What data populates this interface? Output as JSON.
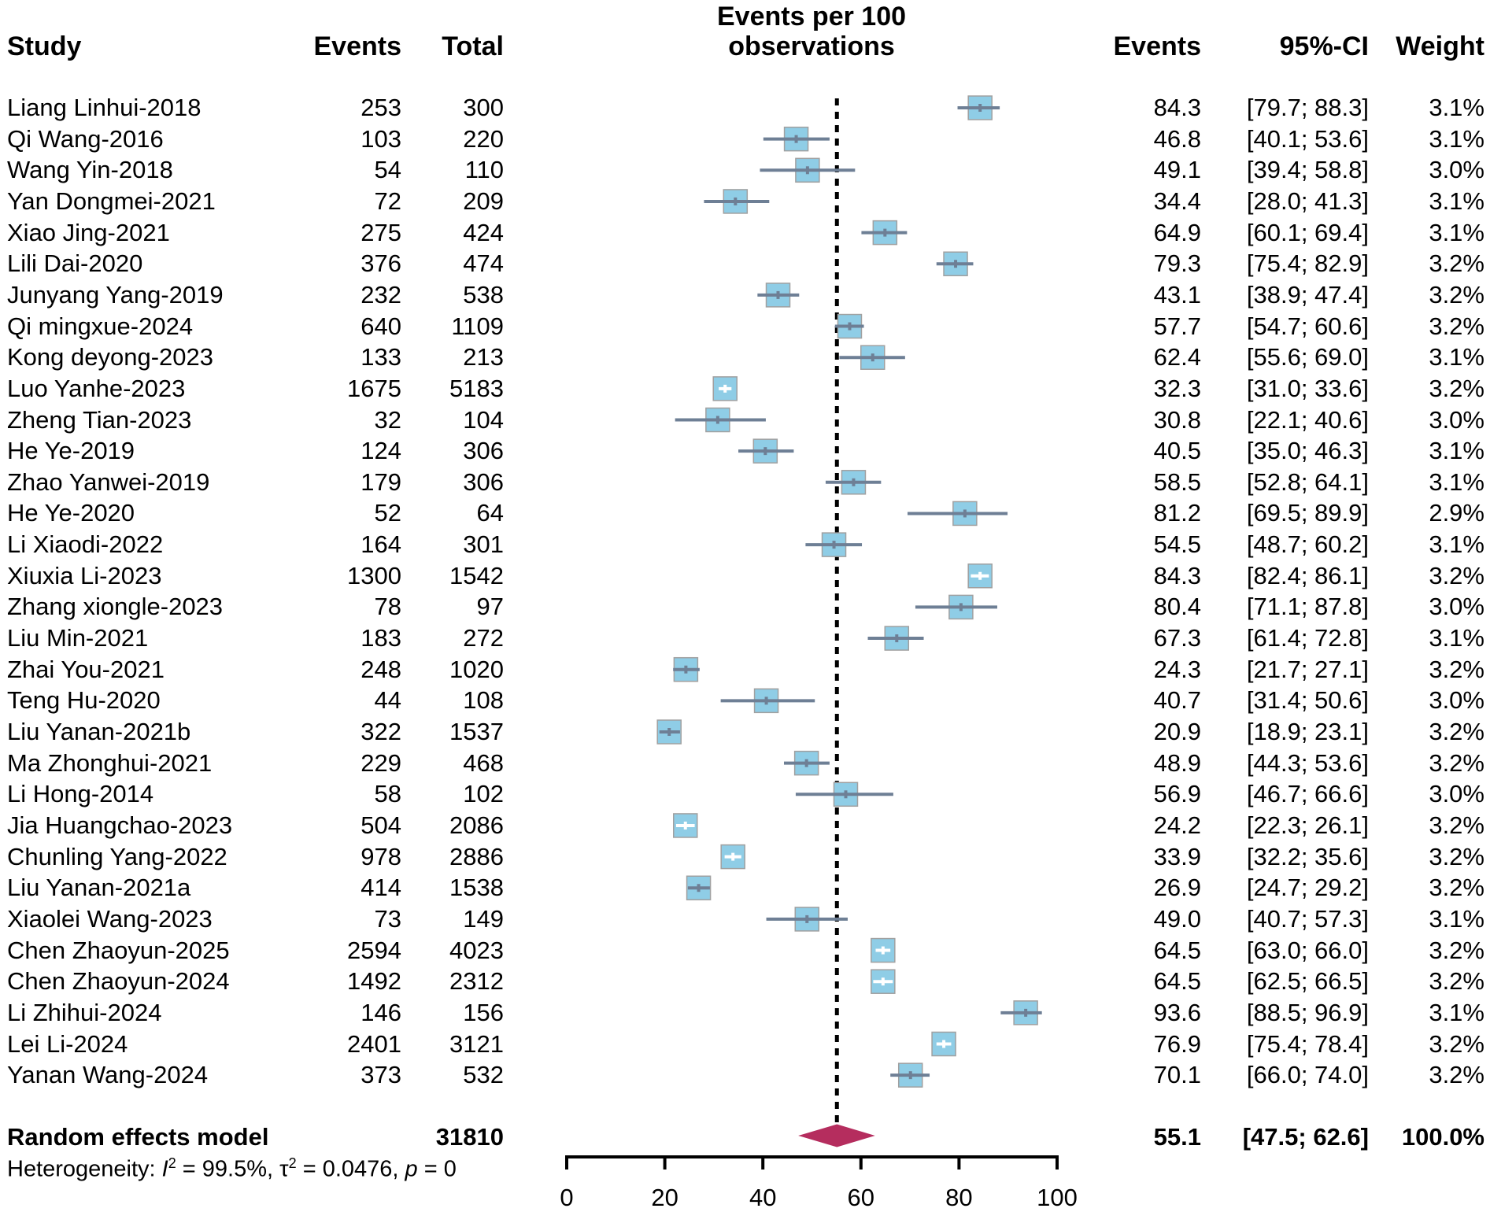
{
  "headers": {
    "study": "Study",
    "events": "Events",
    "total": "Total",
    "plot_title_line1": "Events per 100",
    "plot_title_line2": "observations",
    "est": "Events",
    "ci": "95%-CI",
    "weight": "Weight"
  },
  "summary": {
    "label": "Random effects model",
    "total": "31810",
    "est": "55.1",
    "ci": "[47.5; 62.6]",
    "weight": "100.0%",
    "heterogeneity": {
      "prefix": "Heterogeneity: ",
      "i2_symbol": "I",
      "i2_value": " = 99.5%, ",
      "tau_symbol": "τ",
      "tau_value": " = 0.0476, ",
      "p_symbol": "p",
      "p_value": " = 0",
      "exponent": "2"
    }
  },
  "colors": {
    "box": "#8fcde6",
    "box_border": "#a0a0a0",
    "ci_line": "#6e7f95",
    "diamond": "#b52d5e",
    "dashed": "#000000"
  },
  "chart_data": {
    "type": "forest",
    "xlabel": "",
    "xlim": [
      0,
      100
    ],
    "xticks": [
      0,
      20,
      40,
      60,
      80,
      100
    ],
    "reference_line": 55.1,
    "summary": {
      "est": 55.1,
      "lo": 47.5,
      "hi": 62.6
    },
    "studies": [
      {
        "study": "Liang Linhui-2018",
        "events": "253",
        "total": "300",
        "est": "84.3",
        "ci": "[79.7; 88.3]",
        "weight": "3.1%",
        "lo": 79.7,
        "hi": 88.3
      },
      {
        "study": "Qi Wang-2016",
        "events": "103",
        "total": "220",
        "est": "46.8",
        "ci": "[40.1; 53.6]",
        "weight": "3.1%",
        "lo": 40.1,
        "hi": 53.6
      },
      {
        "study": "Wang Yin-2018",
        "events": "54",
        "total": "110",
        "est": "49.1",
        "ci": "[39.4; 58.8]",
        "weight": "3.0%",
        "lo": 39.4,
        "hi": 58.8
      },
      {
        "study": "Yan Dongmei-2021",
        "events": "72",
        "total": "209",
        "est": "34.4",
        "ci": "[28.0; 41.3]",
        "weight": "3.1%",
        "lo": 28.0,
        "hi": 41.3
      },
      {
        "study": "Xiao Jing-2021",
        "events": "275",
        "total": "424",
        "est": "64.9",
        "ci": "[60.1; 69.4]",
        "weight": "3.1%",
        "lo": 60.1,
        "hi": 69.4
      },
      {
        "study": "Lili Dai-2020",
        "events": "376",
        "total": "474",
        "est": "79.3",
        "ci": "[75.4; 82.9]",
        "weight": "3.2%",
        "lo": 75.4,
        "hi": 82.9
      },
      {
        "study": "Junyang Yang-2019",
        "events": "232",
        "total": "538",
        "est": "43.1",
        "ci": "[38.9; 47.4]",
        "weight": "3.2%",
        "lo": 38.9,
        "hi": 47.4
      },
      {
        "study": "Qi mingxue-2024",
        "events": "640",
        "total": "1109",
        "est": "57.7",
        "ci": "[54.7; 60.6]",
        "weight": "3.2%",
        "lo": 54.7,
        "hi": 60.6
      },
      {
        "study": "Kong deyong-2023",
        "events": "133",
        "total": "213",
        "est": "62.4",
        "ci": "[55.6; 69.0]",
        "weight": "3.1%",
        "lo": 55.6,
        "hi": 69.0
      },
      {
        "study": "Luo Yanhe-2023",
        "events": "1675",
        "total": "5183",
        "est": "32.3",
        "ci": "[31.0; 33.6]",
        "weight": "3.2%",
        "lo": 31.0,
        "hi": 33.6
      },
      {
        "study": "Zheng Tian-2023",
        "events": "32",
        "total": "104",
        "est": "30.8",
        "ci": "[22.1; 40.6]",
        "weight": "3.0%",
        "lo": 22.1,
        "hi": 40.6
      },
      {
        "study": "He Ye-2019",
        "events": "124",
        "total": "306",
        "est": "40.5",
        "ci": "[35.0; 46.3]",
        "weight": "3.1%",
        "lo": 35.0,
        "hi": 46.3
      },
      {
        "study": "Zhao Yanwei-2019",
        "events": "179",
        "total": "306",
        "est": "58.5",
        "ci": "[52.8; 64.1]",
        "weight": "3.1%",
        "lo": 52.8,
        "hi": 64.1
      },
      {
        "study": "He Ye-2020",
        "events": "52",
        "total": "64",
        "est": "81.2",
        "ci": "[69.5; 89.9]",
        "weight": "2.9%",
        "lo": 69.5,
        "hi": 89.9
      },
      {
        "study": "Li Xiaodi-2022",
        "events": "164",
        "total": "301",
        "est": "54.5",
        "ci": "[48.7; 60.2]",
        "weight": "3.1%",
        "lo": 48.7,
        "hi": 60.2
      },
      {
        "study": "Xiuxia Li-2023",
        "events": "1300",
        "total": "1542",
        "est": "84.3",
        "ci": "[82.4; 86.1]",
        "weight": "3.2%",
        "lo": 82.4,
        "hi": 86.1
      },
      {
        "study": "Zhang xiongle-2023",
        "events": "78",
        "total": "97",
        "est": "80.4",
        "ci": "[71.1; 87.8]",
        "weight": "3.0%",
        "lo": 71.1,
        "hi": 87.8
      },
      {
        "study": "Liu Min-2021",
        "events": "183",
        "total": "272",
        "est": "67.3",
        "ci": "[61.4; 72.8]",
        "weight": "3.1%",
        "lo": 61.4,
        "hi": 72.8
      },
      {
        "study": "Zhai You-2021",
        "events": "248",
        "total": "1020",
        "est": "24.3",
        "ci": "[21.7; 27.1]",
        "weight": "3.2%",
        "lo": 21.7,
        "hi": 27.1
      },
      {
        "study": "Teng Hu-2020",
        "events": "44",
        "total": "108",
        "est": "40.7",
        "ci": "[31.4; 50.6]",
        "weight": "3.0%",
        "lo": 31.4,
        "hi": 50.6
      },
      {
        "study": "Liu Yanan-2021b",
        "events": "322",
        "total": "1537",
        "est": "20.9",
        "ci": "[18.9; 23.1]",
        "weight": "3.2%",
        "lo": 18.9,
        "hi": 23.1
      },
      {
        "study": "Ma Zhonghui-2021",
        "events": "229",
        "total": "468",
        "est": "48.9",
        "ci": "[44.3; 53.6]",
        "weight": "3.2%",
        "lo": 44.3,
        "hi": 53.6
      },
      {
        "study": "Li Hong-2014",
        "events": "58",
        "total": "102",
        "est": "56.9",
        "ci": "[46.7; 66.6]",
        "weight": "3.0%",
        "lo": 46.7,
        "hi": 66.6
      },
      {
        "study": "Jia Huangchao-2023",
        "events": "504",
        "total": "2086",
        "est": "24.2",
        "ci": "[22.3; 26.1]",
        "weight": "3.2%",
        "lo": 22.3,
        "hi": 26.1
      },
      {
        "study": "Chunling Yang-2022",
        "events": "978",
        "total": "2886",
        "est": "33.9",
        "ci": "[32.2; 35.6]",
        "weight": "3.2%",
        "lo": 32.2,
        "hi": 35.6
      },
      {
        "study": "Liu Yanan-2021a",
        "events": "414",
        "total": "1538",
        "est": "26.9",
        "ci": "[24.7; 29.2]",
        "weight": "3.2%",
        "lo": 24.7,
        "hi": 29.2
      },
      {
        "study": "Xiaolei Wang-2023",
        "events": "73",
        "total": "149",
        "est": "49.0",
        "ci": "[40.7; 57.3]",
        "weight": "3.1%",
        "lo": 40.7,
        "hi": 57.3
      },
      {
        "study": "Chen Zhaoyun-2025",
        "events": "2594",
        "total": "4023",
        "est": "64.5",
        "ci": "[63.0; 66.0]",
        "weight": "3.2%",
        "lo": 63.0,
        "hi": 66.0
      },
      {
        "study": "Chen Zhaoyun-2024",
        "events": "1492",
        "total": "2312",
        "est": "64.5",
        "ci": "[62.5; 66.5]",
        "weight": "3.2%",
        "lo": 62.5,
        "hi": 66.5
      },
      {
        "study": "Li Zhihui-2024",
        "events": "146",
        "total": "156",
        "est": "93.6",
        "ci": "[88.5; 96.9]",
        "weight": "3.1%",
        "lo": 88.5,
        "hi": 96.9
      },
      {
        "study": "Lei Li-2024",
        "events": "2401",
        "total": "3121",
        "est": "76.9",
        "ci": "[75.4; 78.4]",
        "weight": "3.2%",
        "lo": 75.4,
        "hi": 78.4
      },
      {
        "study": "Yanan Wang-2024",
        "events": "373",
        "total": "532",
        "est": "70.1",
        "ci": "[66.0; 74.0]",
        "weight": "3.2%",
        "lo": 66.0,
        "hi": 74.0
      }
    ]
  }
}
